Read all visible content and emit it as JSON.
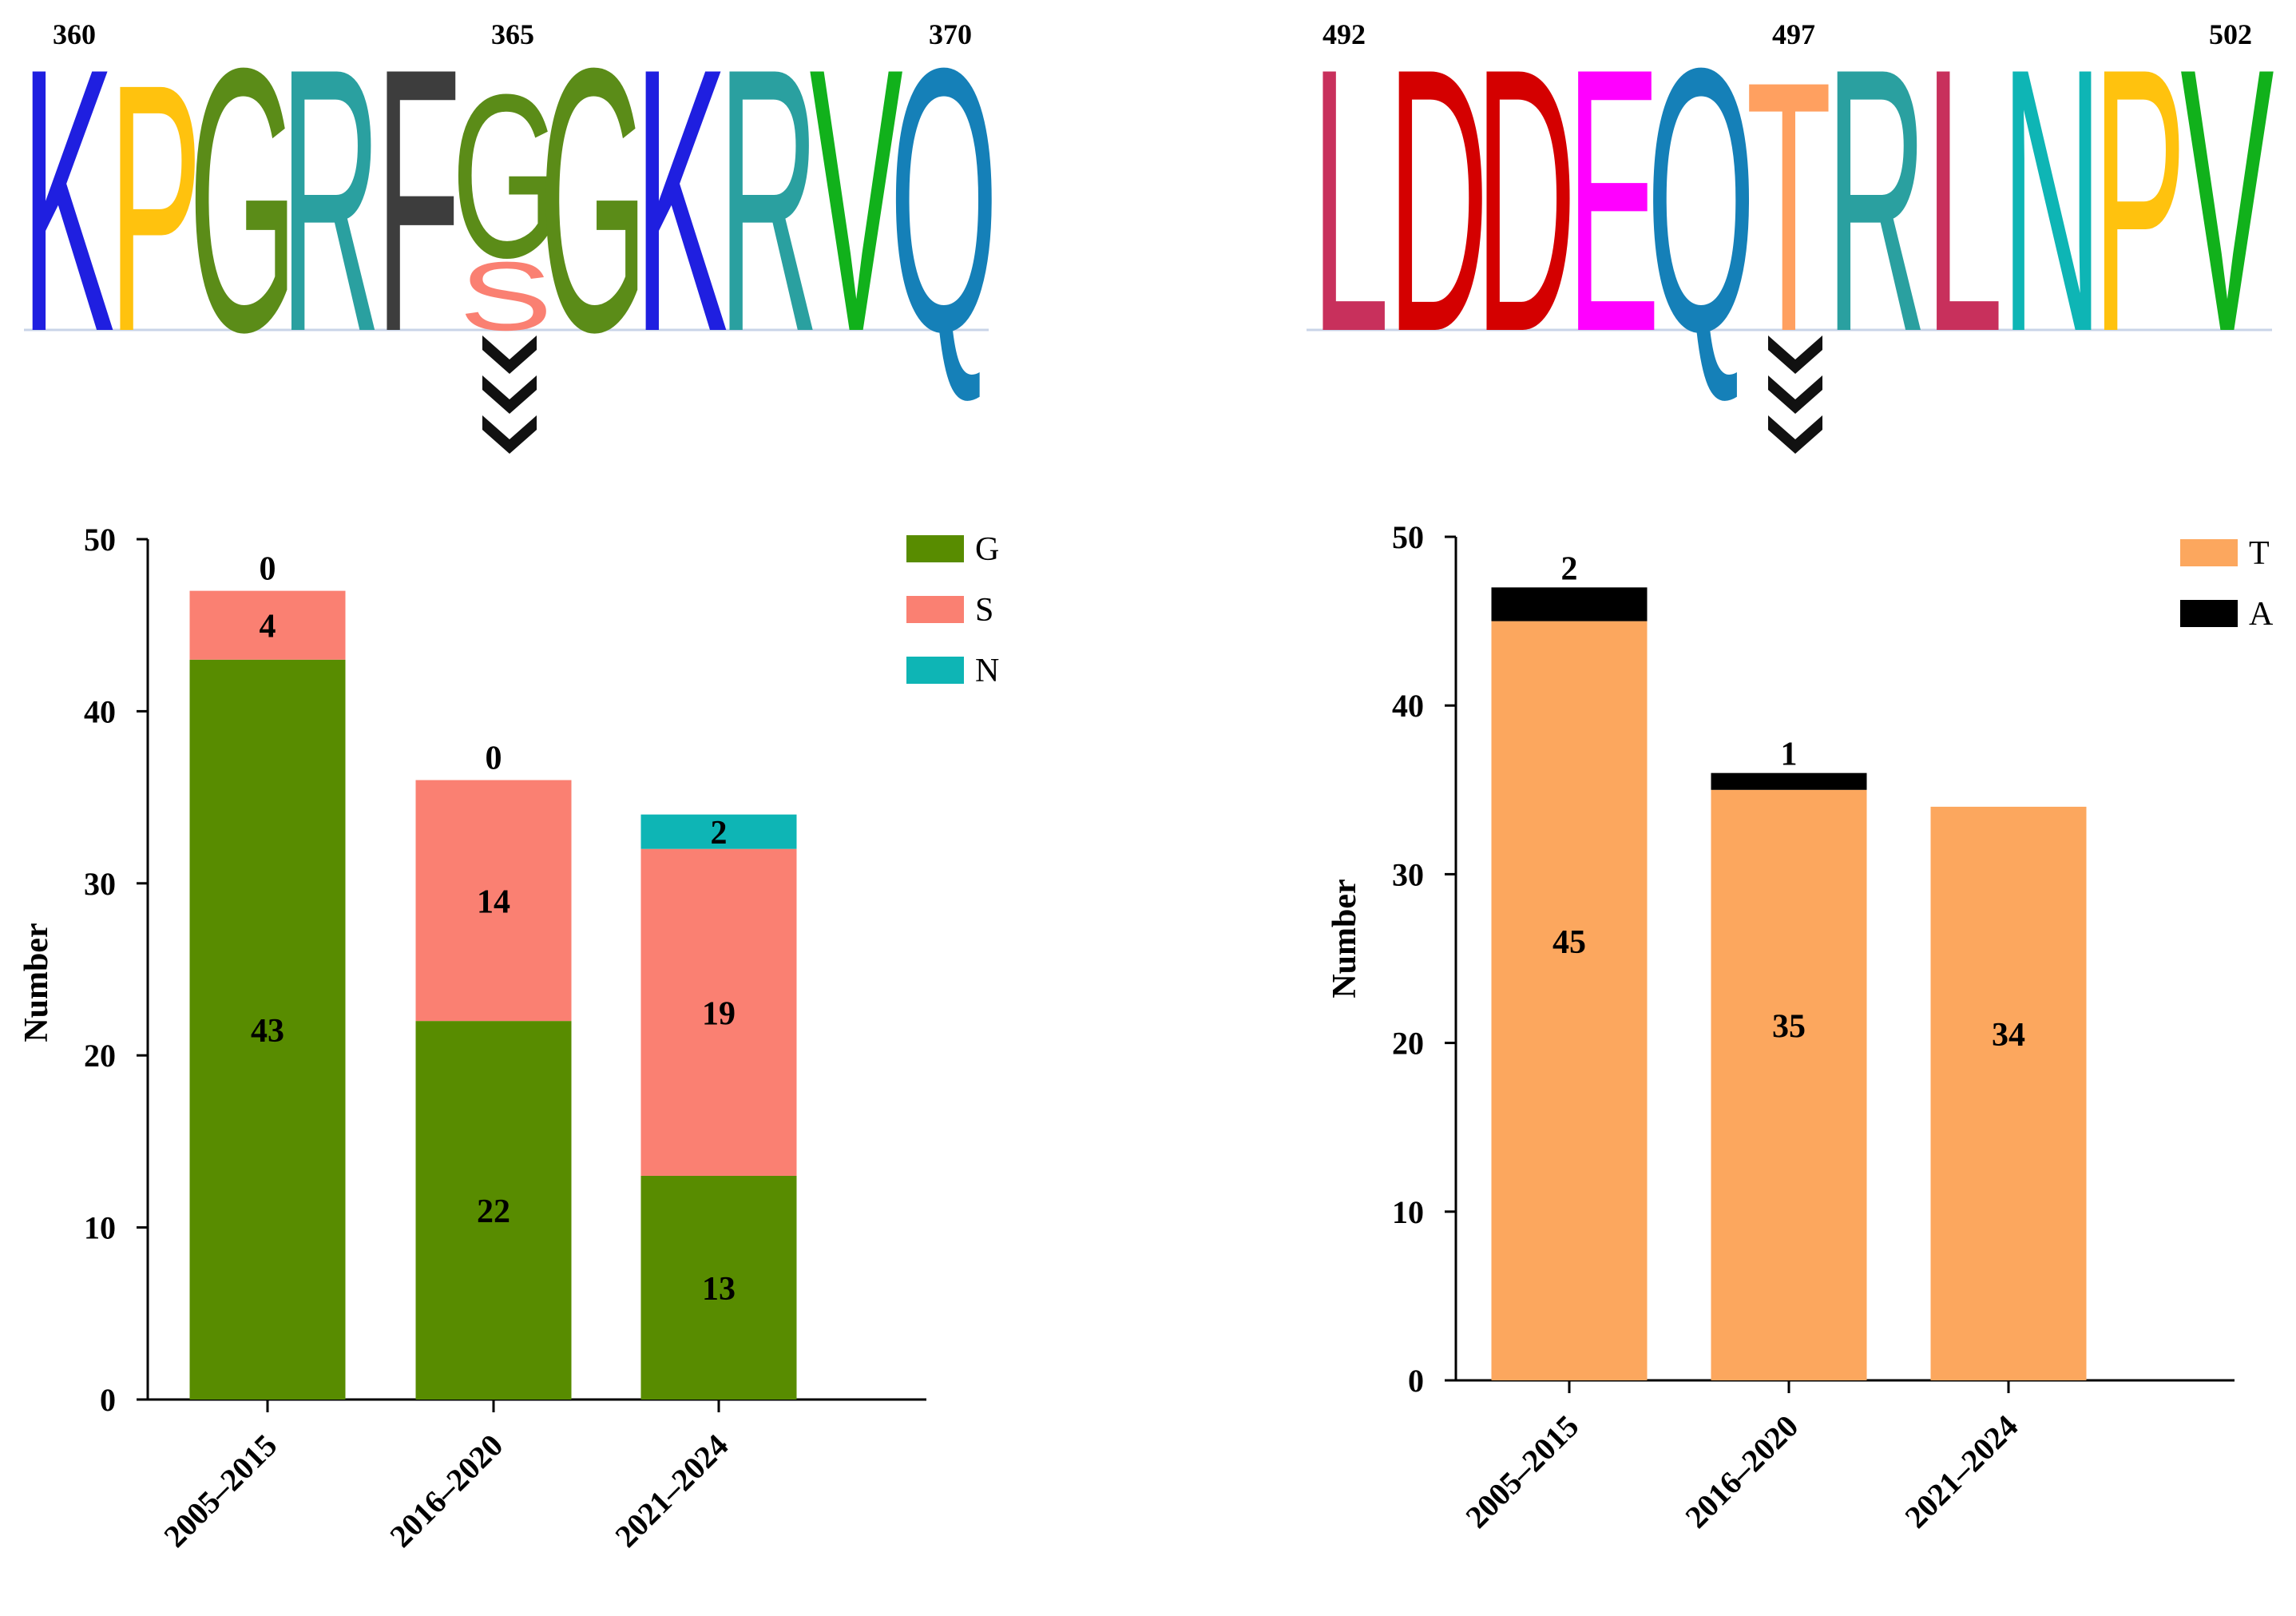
{
  "panels": [
    {
      "logo": {
        "positions": [
          "360",
          "365",
          "370"
        ],
        "letters": [
          "K",
          "P",
          "G",
          "R",
          "F",
          "G",
          "G",
          "K",
          "R",
          "V",
          "Q"
        ],
        "minor_letters": [
          "S"
        ],
        "colors": [
          "#1f1fe0",
          "#ffc20e",
          "#5b8c18",
          "#2aa0a0",
          "#3d3d3d",
          "#5b8c18",
          "#5b8c18",
          "#1f1fe0",
          "#2aa0a0",
          "#11b11b",
          "#1580b8"
        ],
        "minor_color": "#fa8072"
      },
      "arrow_icon": "triple-chevron-down",
      "chart_data": {
        "type": "bar",
        "stacked": true,
        "categories": [
          "2005–2015",
          "2016–2020",
          "2021–2024"
        ],
        "series": [
          {
            "name": "G",
            "values": [
              43,
              22,
              13
            ],
            "color": "#588c00"
          },
          {
            "name": "S",
            "values": [
              4,
              14,
              19
            ],
            "color": "#fa8072"
          },
          {
            "name": "N",
            "values": [
              0,
              0,
              2
            ],
            "color": "#0eb5b5"
          }
        ],
        "data_labels": [
          [
            "43",
            "4",
            "0"
          ],
          [
            "22",
            "14",
            "0"
          ],
          [
            "13",
            "19",
            "2"
          ]
        ],
        "ylabel": "Number",
        "yticks": [
          "0",
          "10",
          "20",
          "30",
          "40",
          "50"
        ],
        "ylim": [
          0,
          50
        ],
        "legend_position": "top-right"
      }
    },
    {
      "logo": {
        "positions": [
          "492",
          "497",
          "502"
        ],
        "letters": [
          "L",
          "D",
          "D",
          "E",
          "Q",
          "T",
          "R",
          "L",
          "N",
          "P",
          "V"
        ],
        "minor_letters": [],
        "colors": [
          "#c8305c",
          "#d40000",
          "#d40000",
          "#ff00ff",
          "#1580b8",
          "#ffa060",
          "#2aa0a0",
          "#c8305c",
          "#0eb5b5",
          "#ffc20e",
          "#11b11b"
        ],
        "minor_color": "#c8305c"
      },
      "arrow_icon": "triple-chevron-down",
      "chart_data": {
        "type": "bar",
        "stacked": true,
        "categories": [
          "2005–2015",
          "2016–2020",
          "2021–2024"
        ],
        "series": [
          {
            "name": "T",
            "values": [
              45,
              35,
              34
            ],
            "color": "#fca75e"
          },
          {
            "name": "A",
            "values": [
              2,
              1,
              0
            ],
            "color": "#000000"
          }
        ],
        "data_labels": [
          [
            "45",
            "2"
          ],
          [
            "35",
            "1"
          ],
          [
            "34",
            ""
          ]
        ],
        "ylabel": "Number",
        "yticks": [
          "0",
          "10",
          "20",
          "30",
          "40",
          "50"
        ],
        "ylim": [
          0,
          50
        ],
        "legend_position": "top-right"
      }
    }
  ]
}
